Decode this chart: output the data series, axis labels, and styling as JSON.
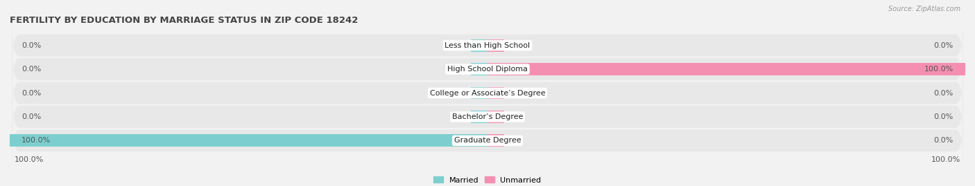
{
  "title": "FERTILITY BY EDUCATION BY MARRIAGE STATUS IN ZIP CODE 18242",
  "source": "Source: ZipAtlas.com",
  "categories": [
    "Less than High School",
    "High School Diploma",
    "College or Associate’s Degree",
    "Bachelor’s Degree",
    "Graduate Degree"
  ],
  "married_values": [
    0.0,
    0.0,
    0.0,
    0.0,
    100.0
  ],
  "unmarried_values": [
    0.0,
    100.0,
    0.0,
    0.0,
    0.0
  ],
  "married_color": "#7dcfcf",
  "unmarried_color": "#f48fb1",
  "background_color": "#f2f2f2",
  "row_bg_even": "#e8e8e8",
  "row_bg_odd": "#e0e0e0",
  "bar_bg_color": "#ffffff",
  "title_fontsize": 9.5,
  "label_fontsize": 8,
  "val_fontsize": 8,
  "xlim": [
    -100,
    100
  ],
  "bottom_left_label": "100.0%",
  "bottom_right_label": "100.0%",
  "stub_size": 3.5
}
